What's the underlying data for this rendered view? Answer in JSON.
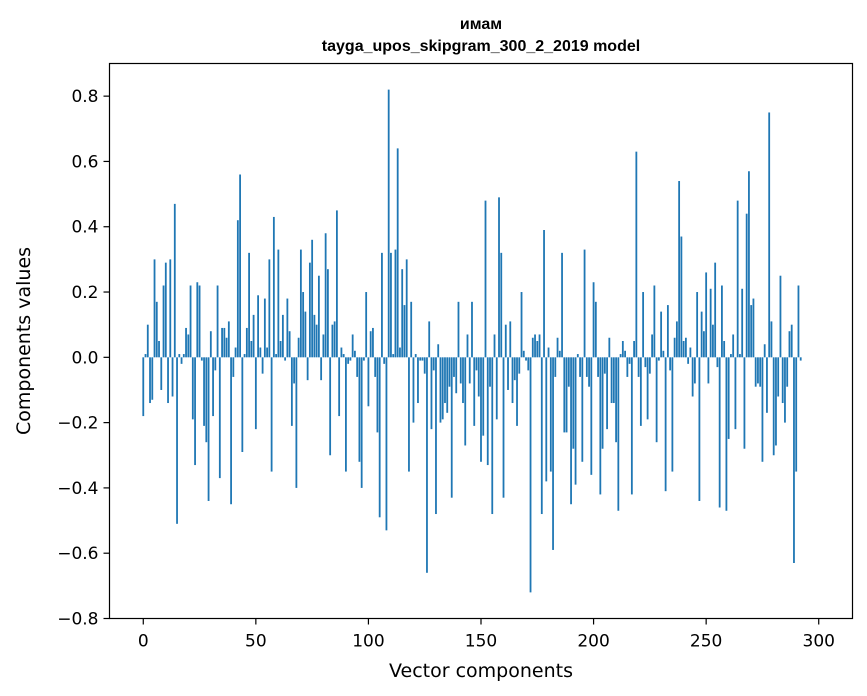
{
  "chart_data": {
    "type": "bar",
    "title": "имам",
    "subtitle": "tayga_upos_skipgram_300_2_2019 model",
    "xlabel": "Vector components",
    "ylabel": "Components values",
    "xlim": [
      -15,
      315
    ],
    "ylim": [
      -0.8,
      0.9
    ],
    "xticks": [
      0,
      50,
      100,
      150,
      200,
      250,
      300
    ],
    "yticks": [
      -0.8,
      -0.6,
      -0.4,
      -0.2,
      0.0,
      0.2,
      0.4,
      0.6,
      0.8
    ],
    "ytick_labels": [
      "−0.8",
      "−0.6",
      "−0.4",
      "−0.2",
      "0.0",
      "0.2",
      "0.4",
      "0.6",
      "0.8"
    ],
    "grid": false,
    "legend": "none",
    "bar_color": "#1f77b4",
    "values": [
      -0.18,
      0.01,
      0.1,
      -0.14,
      -0.13,
      0.3,
      0.17,
      0.05,
      -0.1,
      0.22,
      0.29,
      -0.14,
      0.3,
      -0.12,
      0.47,
      -0.51,
      0.01,
      -0.02,
      0.01,
      0.09,
      0.07,
      0.22,
      -0.19,
      -0.33,
      0.23,
      0.22,
      -0.01,
      -0.21,
      -0.26,
      -0.44,
      0.08,
      -0.18,
      -0.04,
      0.22,
      -0.37,
      0.09,
      0.09,
      0.06,
      0.11,
      -0.45,
      -0.06,
      0.03,
      0.42,
      0.56,
      -0.29,
      0.01,
      0.09,
      0.32,
      0.05,
      0.13,
      -0.22,
      0.19,
      0.03,
      -0.05,
      0.18,
      0.03,
      0.3,
      -0.35,
      0.43,
      0.01,
      0.33,
      0.05,
      0.13,
      -0.01,
      0.18,
      0.08,
      -0.21,
      -0.08,
      -0.4,
      0.06,
      0.33,
      0.2,
      0.14,
      -0.07,
      0.29,
      0.36,
      0.13,
      0.1,
      0.25,
      -0.07,
      0.07,
      0.38,
      0.27,
      -0.3,
      0.1,
      0.11,
      0.45,
      -0.18,
      0.03,
      0.01,
      -0.35,
      -0.02,
      -0.01,
      0.07,
      0.02,
      -0.06,
      -0.32,
      -0.4,
      -0.01,
      0.2,
      -0.15,
      0.08,
      0.09,
      -0.06,
      -0.23,
      -0.49,
      0.32,
      -0.02,
      -0.53,
      0.82,
      0.32,
      0.01,
      0.33,
      0.64,
      0.03,
      0.27,
      0.16,
      0.3,
      -0.35,
      0.17,
      -0.2,
      0.01,
      -0.14,
      -0.01,
      -0.01,
      -0.05,
      -0.66,
      0.11,
      -0.22,
      -0.04,
      -0.48,
      0.04,
      -0.2,
      -0.19,
      -0.14,
      -0.17,
      -0.09,
      -0.43,
      -0.06,
      -0.11,
      0.17,
      -0.08,
      -0.14,
      -0.27,
      0.07,
      -0.08,
      0.17,
      -0.21,
      -0.04,
      -0.12,
      -0.32,
      -0.24,
      0.48,
      -0.33,
      -0.09,
      -0.48,
      0.07,
      -0.19,
      0.49,
      0.32,
      -0.43,
      0.1,
      -0.1,
      0.11,
      -0.14,
      -0.07,
      -0.21,
      -0.05,
      0.2,
      0.02,
      -0.01,
      -0.04,
      -0.72,
      0.06,
      0.07,
      0.05,
      0.07,
      -0.48,
      0.39,
      -0.38,
      0.03,
      -0.35,
      -0.59,
      -0.06,
      0.06,
      0.02,
      0.32,
      -0.23,
      -0.23,
      -0.09,
      -0.45,
      -0.28,
      -0.39,
      0.01,
      -0.06,
      -0.32,
      0.33,
      -0.06,
      -0.09,
      -0.36,
      0.23,
      0.17,
      -0.06,
      -0.42,
      -0.28,
      -0.05,
      -0.22,
      0.06,
      -0.14,
      -0.14,
      -0.26,
      -0.47,
      0.01,
      0.05,
      0.02,
      -0.06,
      -0.02,
      -0.42,
      0.05,
      0.63,
      -0.06,
      -0.21,
      0.2,
      -0.03,
      -0.19,
      -0.05,
      0.07,
      0.22,
      -0.26,
      -0.01,
      0.14,
      0.02,
      -0.41,
      0.16,
      -0.04,
      -0.35,
      0.06,
      0.11,
      0.54,
      0.37,
      0.05,
      0.06,
      -0.02,
      0.03,
      -0.12,
      -0.08,
      0.2,
      -0.44,
      0.14,
      0.08,
      0.26,
      -0.08,
      0.21,
      0.1,
      0.29,
      -0.03,
      -0.46,
      0.22,
      0.05,
      -0.47,
      -0.25,
      0.01,
      0.07,
      -0.22,
      0.48,
      0.01,
      0.21,
      -0.28,
      0.44,
      0.57,
      0.16,
      0.18,
      -0.09,
      -0.08,
      -0.09,
      -0.32,
      0.04,
      -0.17,
      0.75,
      0.11,
      -0.3,
      -0.27,
      -0.12,
      0.25,
      -0.14,
      -0.2,
      -0.09,
      0.08,
      0.1,
      -0.63,
      -0.35,
      0.22,
      -0.01
    ]
  }
}
